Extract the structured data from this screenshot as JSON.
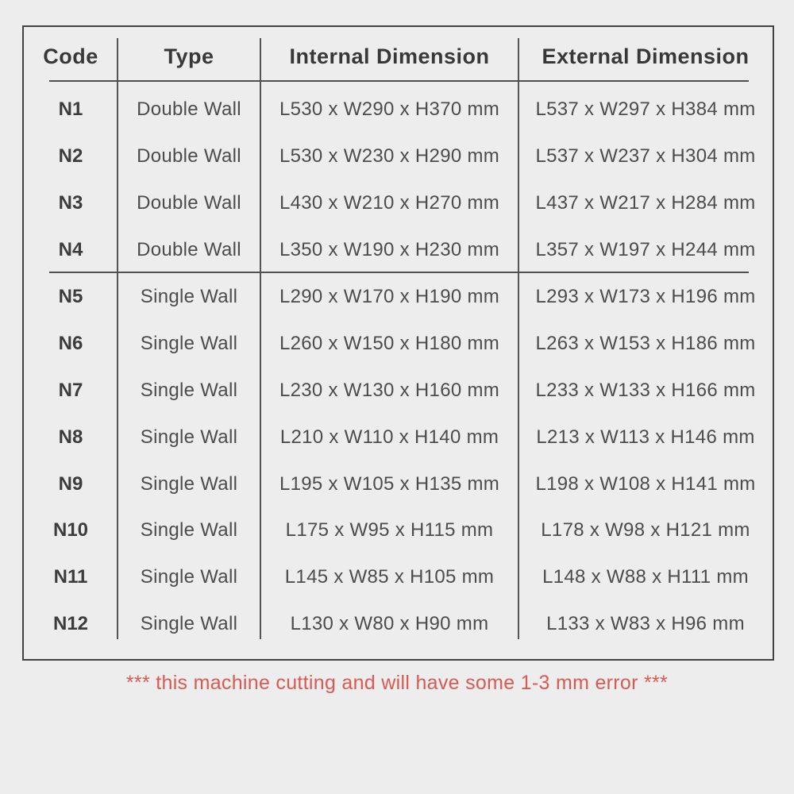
{
  "table": {
    "headers": [
      "Code",
      "Type",
      "Internal Dimension",
      "External Dimension"
    ],
    "rows": [
      {
        "code": "N1",
        "type": "Double Wall",
        "internal": "L530 x W290 x H370 mm",
        "external": "L537 x W297 x H384 mm"
      },
      {
        "code": "N2",
        "type": "Double Wall",
        "internal": "L530 x W230 x H290 mm",
        "external": "L537 x W237 x H304 mm"
      },
      {
        "code": "N3",
        "type": "Double Wall",
        "internal": "L430 x W210 x H270 mm",
        "external": "L437 x W217 x H284 mm"
      },
      {
        "code": "N4",
        "type": "Double Wall",
        "internal": "L350 x W190 x H230 mm",
        "external": "L357 x W197 x H244 mm"
      },
      {
        "code": "N5",
        "type": "Single Wall",
        "internal": "L290 x W170 x H190 mm",
        "external": "L293 x W173 x H196 mm"
      },
      {
        "code": "N6",
        "type": "Single Wall",
        "internal": "L260 x W150 x H180 mm",
        "external": "L263 x W153 x H186 mm"
      },
      {
        "code": "N7",
        "type": "Single Wall",
        "internal": "L230 x W130 x H160 mm",
        "external": "L233 x W133 x H166 mm"
      },
      {
        "code": "N8",
        "type": "Single Wall",
        "internal": "L210 x W110 x H140 mm",
        "external": "L213 x W113 x H146 mm"
      },
      {
        "code": "N9",
        "type": "Single Wall",
        "internal": "L195 x W105 x H135 mm",
        "external": "L198 x W108 x H141 mm"
      },
      {
        "code": "N10",
        "type": "Single Wall",
        "internal": "L175 x W95 x H115 mm",
        "external": "L178 x W98 x H121 mm"
      },
      {
        "code": "N11",
        "type": "Single Wall",
        "internal": "L145 x W85 x H105 mm",
        "external": "L148 x W88 x H111 mm"
      },
      {
        "code": "N12",
        "type": "Single Wall",
        "internal": "L130 x W80 x H90 mm",
        "external": "L133 x W83 x H96 mm"
      }
    ],
    "section_break_after_row": "N4"
  },
  "footer": {
    "note": "*** this machine cutting and will have some 1-3 mm error ***"
  },
  "colors": {
    "background": "#ededed",
    "border": "#424242",
    "line": "#555555",
    "header_text": "#383838",
    "cell_text": "#4c4c4c",
    "note_red": "#d75b52"
  }
}
